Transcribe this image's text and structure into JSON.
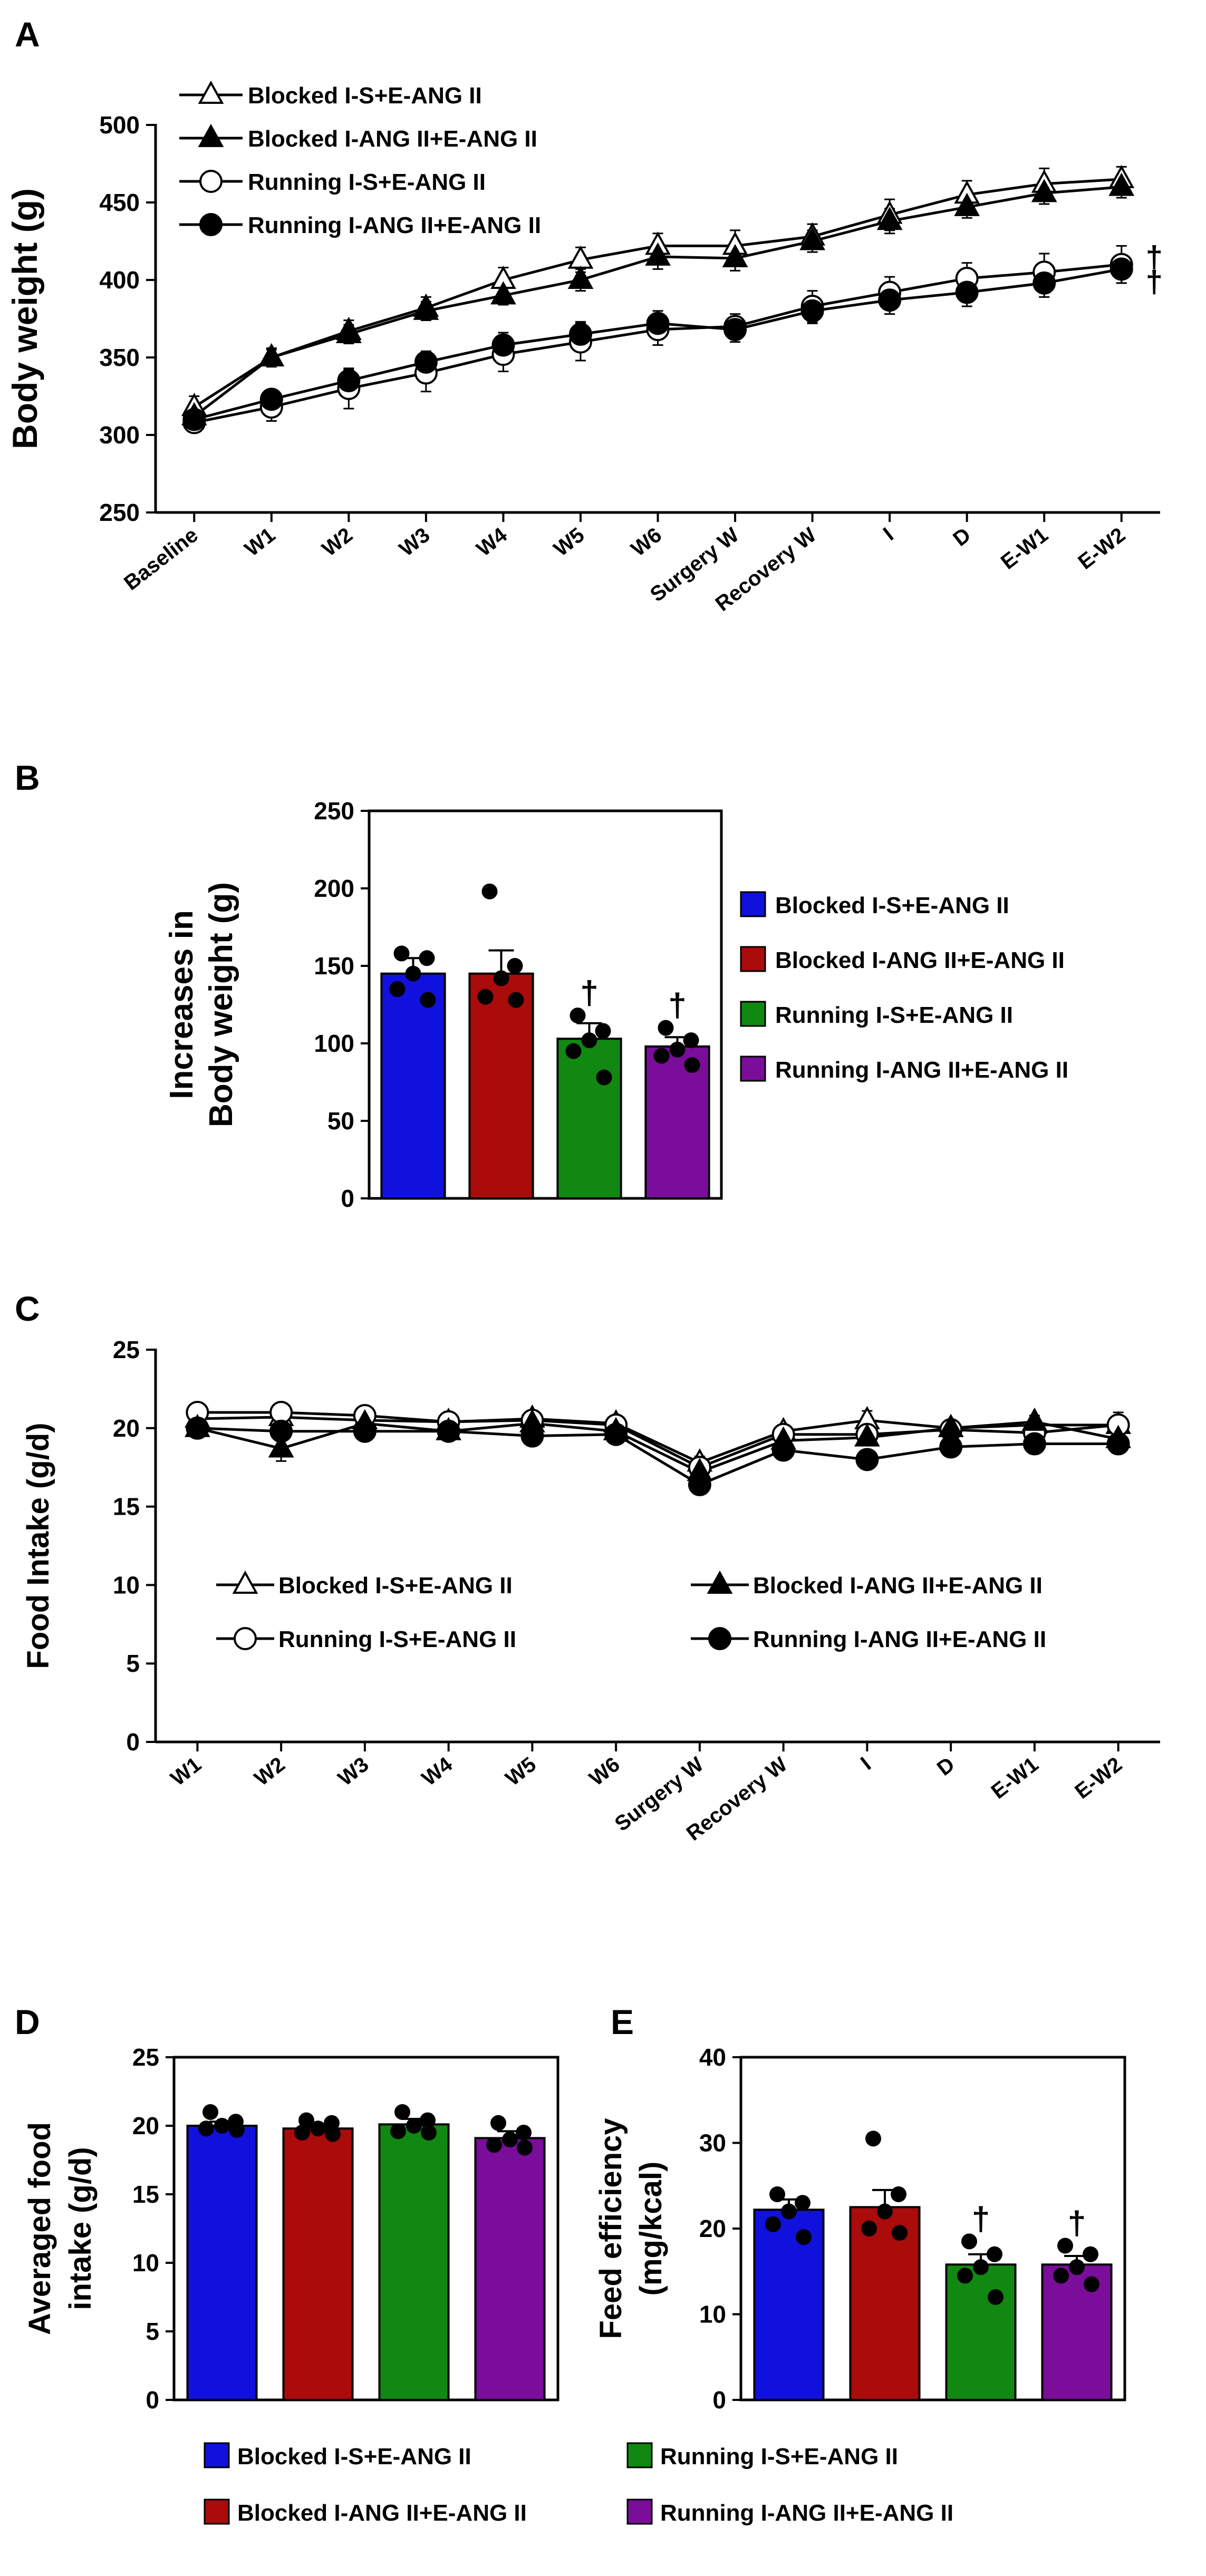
{
  "colors": {
    "blocked_s": "#1111dd",
    "blocked_ang": "#aa0b0b",
    "running_s": "#118811",
    "running_ang": "#7a0d9a",
    "axis": "#000000"
  },
  "legend": {
    "g1": "Blocked I-S+E-ANG II",
    "g2": "Blocked I-ANG II+E-ANG II",
    "g3": "Running I-S+E-ANG II",
    "g4": "Running I-ANG II+E-ANG II"
  },
  "chart_data": [
    {
      "panel": "A",
      "type": "line",
      "ylabel": "Body weight (g)",
      "ylim": [
        250,
        500
      ],
      "yticks": [
        250,
        300,
        350,
        400,
        450,
        500
      ],
      "categories": [
        "Baseline",
        "W1",
        "W2",
        "W3",
        "W4",
        "W5",
        "W6",
        "Surgery W",
        "Recovery W",
        "I",
        "D",
        "E-W1",
        "E-W2"
      ],
      "series": [
        {
          "name": "Blocked I-S+E-ANG II",
          "marker": "open-triangle",
          "values": [
            318,
            350,
            367,
            382,
            400,
            413,
            422,
            422,
            428,
            442,
            455,
            462,
            465
          ],
          "err": [
            7,
            5,
            7,
            7,
            8,
            8,
            8,
            10,
            8,
            10,
            9,
            10,
            8
          ]
        },
        {
          "name": "Blocked I-ANG II+E-ANG II",
          "marker": "filled-triangle",
          "values": [
            312,
            350,
            365,
            380,
            390,
            400,
            415,
            414,
            425,
            438,
            447,
            456,
            460
          ],
          "err": [
            7,
            6,
            6,
            6,
            6,
            7,
            8,
            8,
            7,
            8,
            7,
            7,
            7
          ]
        },
        {
          "name": "Running I-S+E-ANG II",
          "marker": "open-circle",
          "values": [
            308,
            318,
            330,
            340,
            352,
            360,
            368,
            370,
            383,
            392,
            401,
            405,
            410
          ],
          "err": [
            6,
            9,
            13,
            12,
            11,
            12,
            10,
            8,
            10,
            10,
            10,
            12,
            12
          ]
        },
        {
          "name": "Running I-ANG II+E-ANG II",
          "marker": "filled-circle",
          "values": [
            310,
            323,
            335,
            347,
            358,
            365,
            372,
            368,
            380,
            387,
            392,
            398,
            407
          ],
          "err": [
            5,
            6,
            7,
            7,
            8,
            8,
            8,
            8,
            8,
            9,
            9,
            9,
            9
          ]
        }
      ],
      "annotations": [
        "†",
        "†"
      ]
    },
    {
      "panel": "B",
      "type": "bar",
      "ylabel_line1": "Increases in",
      "ylabel_line2": "Body weight  (g)",
      "ylim": [
        0,
        250
      ],
      "yticks": [
        0,
        50,
        100,
        150,
        200,
        250
      ],
      "categories": [
        "Blocked I-S+E-ANG II",
        "Blocked I-ANG II+E-ANG II",
        "Running I-S+E-ANG II",
        "Running I-ANG II+E-ANG II"
      ],
      "values": [
        145,
        145,
        103,
        98
      ],
      "err": [
        10,
        15,
        10,
        6
      ],
      "points": [
        [
          158,
          155,
          145,
          135,
          128
        ],
        [
          198,
          150,
          142,
          130,
          128
        ],
        [
          118,
          108,
          102,
          95,
          78
        ],
        [
          110,
          102,
          96,
          92,
          86
        ]
      ],
      "annotations": [
        "",
        "",
        "†",
        "†"
      ]
    },
    {
      "panel": "C",
      "type": "line",
      "ylabel": "Food Intake (g/d)",
      "ylim": [
        0,
        25
      ],
      "yticks": [
        0,
        5,
        10,
        15,
        20,
        25
      ],
      "categories": [
        "W1",
        "W2",
        "W3",
        "W4",
        "W5",
        "W6",
        "Surgery W",
        "Recovery W",
        "I",
        "D",
        "E-W1",
        "E-W2"
      ],
      "series": [
        {
          "name": "Blocked I-S+E-ANG II",
          "marker": "open-triangle",
          "values": [
            20.6,
            20.7,
            20.5,
            20.4,
            20.6,
            20.3,
            17.8,
            19.8,
            20.5,
            20.0,
            20.2,
            20.2
          ],
          "err": [
            0.3,
            0.3,
            0.3,
            0.3,
            0.3,
            0.3,
            0.4,
            0.4,
            0.6,
            0.4,
            0.4,
            0.6
          ]
        },
        {
          "name": "Blocked I-ANG II+E-ANG II",
          "marker": "filled-triangle",
          "values": [
            20.0,
            18.7,
            20.3,
            19.8,
            20.3,
            19.8,
            17.2,
            19.2,
            19.4,
            20.0,
            20.4,
            19.3
          ],
          "err": [
            0.3,
            0.8,
            0.3,
            0.4,
            0.3,
            0.3,
            0.4,
            0.4,
            0.4,
            0.3,
            0.4,
            0.4
          ]
        },
        {
          "name": "Running I-S+E-ANG II",
          "marker": "open-circle",
          "values": [
            21.0,
            21.0,
            20.8,
            20.4,
            20.5,
            20.2,
            17.5,
            19.6,
            19.6,
            19.9,
            19.7,
            20.2
          ],
          "err": [
            0.3,
            0.3,
            0.3,
            0.3,
            0.3,
            0.3,
            0.4,
            0.4,
            0.5,
            0.4,
            0.4,
            0.8
          ]
        },
        {
          "name": "Running I-ANG II+E-ANG II",
          "marker": "filled-circle",
          "values": [
            20.0,
            19.8,
            19.8,
            19.8,
            19.5,
            19.6,
            16.4,
            18.6,
            18.0,
            18.8,
            19.0,
            19.0
          ],
          "err": [
            0.3,
            0.4,
            0.3,
            0.3,
            0.3,
            0.3,
            0.4,
            0.4,
            0.4,
            0.5,
            0.4,
            0.4
          ]
        }
      ]
    },
    {
      "panel": "D",
      "type": "bar",
      "ylabel_line1": "Averaged food",
      "ylabel_line2": "intake (g/d)",
      "ylim": [
        0,
        25
      ],
      "yticks": [
        0,
        5,
        10,
        15,
        20,
        25
      ],
      "categories": [
        "Blocked I-S+E-ANG II",
        "Blocked I-ANG II+E-ANG II",
        "Running I-S+E-ANG II",
        "Running I-ANG II+E-ANG II"
      ],
      "values": [
        20.0,
        19.8,
        20.1,
        19.1
      ],
      "err": [
        0.3,
        0.3,
        0.4,
        0.5
      ],
      "points": [
        [
          21.0,
          20.3,
          20.0,
          19.8,
          19.7
        ],
        [
          20.4,
          20.2,
          19.8,
          19.5,
          19.4
        ],
        [
          21.0,
          20.4,
          20.0,
          19.6,
          19.5
        ],
        [
          20.2,
          19.5,
          19.0,
          18.6,
          18.4
        ]
      ],
      "annotations": [
        "",
        "",
        "",
        ""
      ]
    },
    {
      "panel": "E",
      "type": "bar",
      "ylabel_line1": "Feed efficiency",
      "ylabel_line2": "(mg/kcal)",
      "ylim": [
        0,
        40
      ],
      "yticks": [
        0,
        10,
        20,
        30,
        40
      ],
      "categories": [
        "Blocked I-S+E-ANG II",
        "Blocked I-ANG II+E-ANG II",
        "Running I-S+E-ANG II",
        "Running I-ANG II+E-ANG II"
      ],
      "values": [
        22.2,
        22.5,
        15.8,
        15.8
      ],
      "err": [
        1.2,
        2.0,
        1.2,
        1.0
      ],
      "points": [
        [
          24.0,
          23.0,
          22.0,
          20.5,
          19.0
        ],
        [
          30.5,
          24.0,
          22.0,
          20.0,
          19.5
        ],
        [
          18.5,
          17.0,
          15.5,
          14.5,
          12.0
        ],
        [
          18.0,
          17.0,
          15.5,
          14.5,
          13.5
        ]
      ],
      "annotations": [
        "",
        "",
        "†",
        "†"
      ]
    }
  ]
}
